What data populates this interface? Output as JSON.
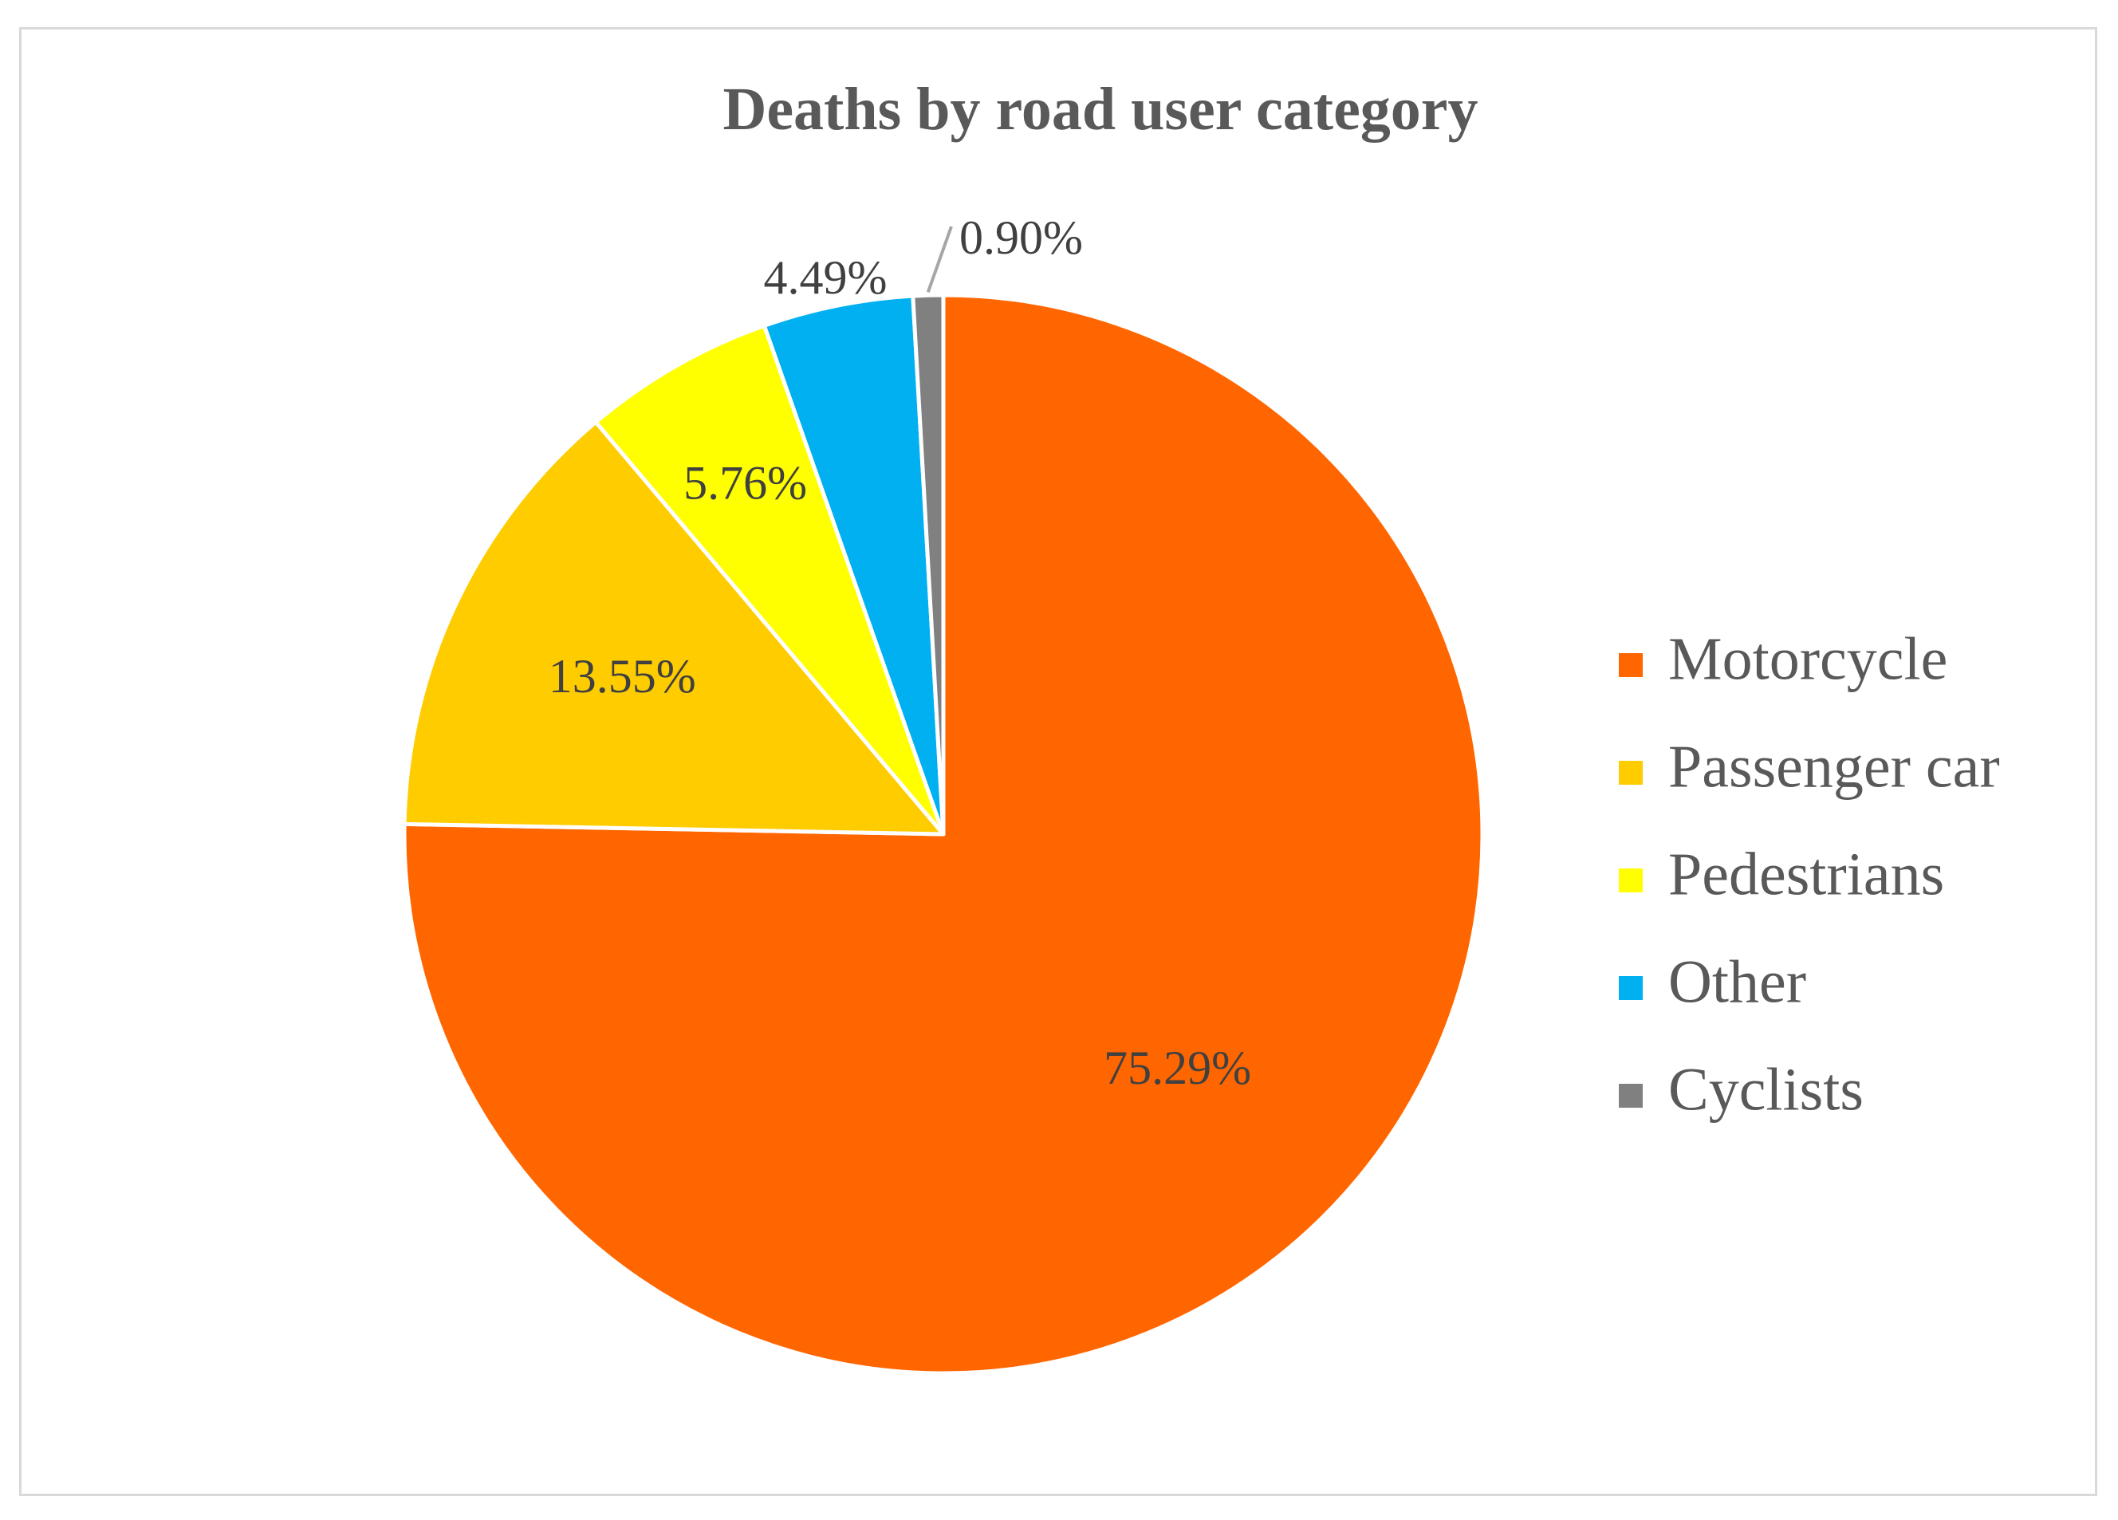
{
  "chart_data": {
    "type": "pie",
    "title": "Deaths by road user category",
    "start_angle_deg": 0,
    "direction": "clockwise",
    "slices": [
      {
        "name": "Motorcycle",
        "value": 75.29,
        "label": "75.29%",
        "color": "#FF6600"
      },
      {
        "name": "Passenger car",
        "value": 13.55,
        "label": "13.55%",
        "color": "#FFCC00"
      },
      {
        "name": "Pedestrians",
        "value": 5.76,
        "label": "5.76%",
        "color": "#FFFF00"
      },
      {
        "name": "Other",
        "value": 4.49,
        "label": "4.49%",
        "color": "#00B0F0"
      },
      {
        "name": "Cyclists",
        "value": 0.9,
        "label": "0.90%",
        "color": "#808080"
      }
    ],
    "legend": {
      "placement": "right",
      "entries": [
        "Motorcycle",
        "Passenger car",
        "Pedestrians",
        "Other",
        "Cyclists"
      ]
    },
    "slice_border_color": "#FFFFFF",
    "leader_line_color": "#A6A6A6"
  }
}
